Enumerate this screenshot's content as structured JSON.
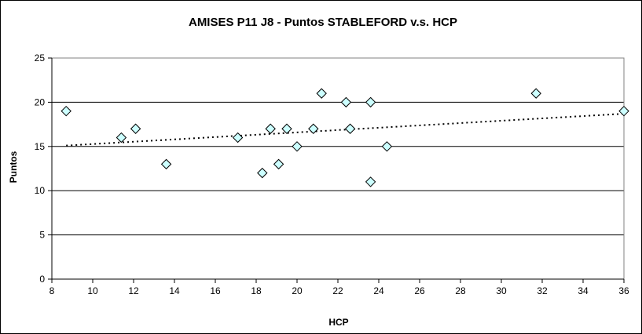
{
  "chart_data": {
    "type": "scatter",
    "title": "AMISES P11 J8 - Puntos STABLEFORD v.s. HCP",
    "xlabel": "HCP",
    "ylabel": "Puntos",
    "xlim": [
      8,
      36
    ],
    "ylim": [
      0,
      25
    ],
    "x_ticks": [
      8,
      10,
      12,
      14,
      16,
      18,
      20,
      22,
      24,
      26,
      28,
      30,
      32,
      34,
      36
    ],
    "y_ticks": [
      0,
      5,
      10,
      15,
      20,
      25
    ],
    "grid": "horizontal",
    "points": [
      {
        "x": 8.7,
        "y": 19
      },
      {
        "x": 11.4,
        "y": 16
      },
      {
        "x": 12.1,
        "y": 17
      },
      {
        "x": 13.6,
        "y": 13
      },
      {
        "x": 17.1,
        "y": 16
      },
      {
        "x": 18.3,
        "y": 12
      },
      {
        "x": 18.7,
        "y": 17
      },
      {
        "x": 19.1,
        "y": 13
      },
      {
        "x": 19.5,
        "y": 17
      },
      {
        "x": 20.0,
        "y": 15
      },
      {
        "x": 20.8,
        "y": 17
      },
      {
        "x": 21.2,
        "y": 21
      },
      {
        "x": 22.4,
        "y": 20
      },
      {
        "x": 22.6,
        "y": 17
      },
      {
        "x": 23.6,
        "y": 20
      },
      {
        "x": 23.6,
        "y": 11
      },
      {
        "x": 24.4,
        "y": 15
      },
      {
        "x": 31.7,
        "y": 21
      },
      {
        "x": 36.0,
        "y": 19
      }
    ],
    "trendline": {
      "type": "linear",
      "x": [
        8.7,
        36.0
      ],
      "y": [
        15.1,
        18.7
      ]
    },
    "marker_fill": "#ccffff",
    "marker_stroke": "#000000",
    "trend_color": "#000000"
  }
}
